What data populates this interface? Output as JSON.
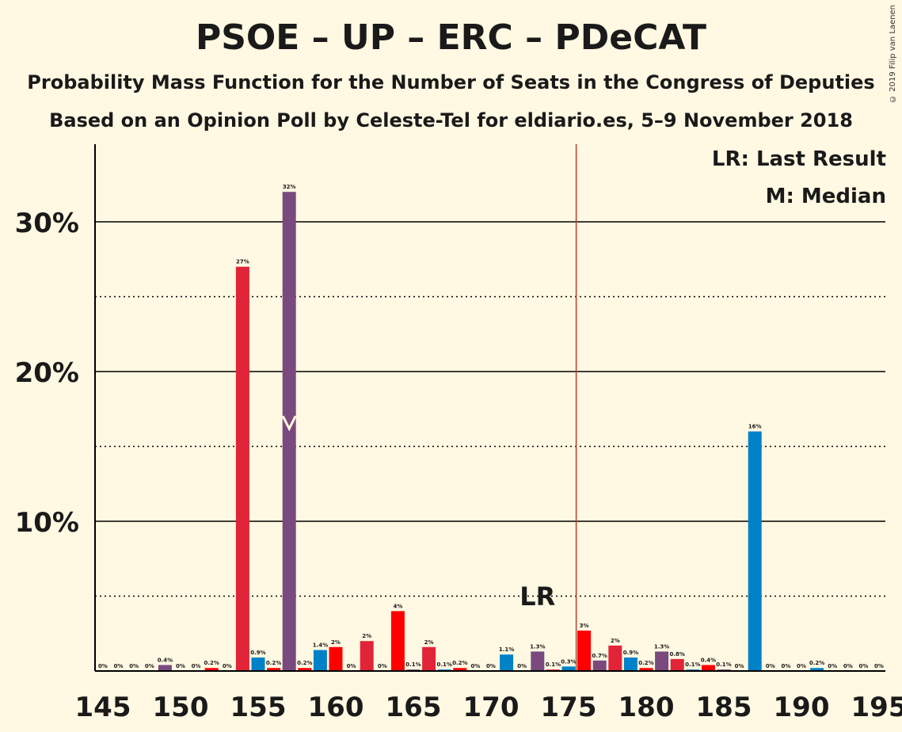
{
  "title": "PSOE – UP – ERC – PDeCAT",
  "subtitle1": "Probability Mass Function for the Number of Seats in the Congress of Deputies",
  "subtitle2": "Based on an Opinion Poll by Celeste-Tel for eldiario.es, 5–9 November 2018",
  "copyright": "© 2019 Filip van Laenen",
  "legend": {
    "lr": "LR: Last Result",
    "median": "M: Median"
  },
  "colors": {
    "background": "#FFF8E2",
    "PSOE": "#E12437",
    "UP": "#7A4A7E",
    "ERC": "#FF0000",
    "PDeCAT": "#0081C8",
    "majority_line": "#C0392B"
  },
  "chart_data": {
    "type": "bar",
    "xlabel": "",
    "ylabel": "",
    "xlim": [
      145,
      195
    ],
    "ylim": [
      0,
      35
    ],
    "x_ticks": [
      "145",
      "150",
      "155",
      "160",
      "165",
      "170",
      "175",
      "180",
      "185",
      "190",
      "195"
    ],
    "y_ticks": [
      "10%",
      "20%",
      "30%"
    ],
    "grid": "solid lines at 10% steps, dotted lines at 5% steps",
    "last_result_seat": 173,
    "last_result_label": "LR",
    "median_seat": 157,
    "majority_seat": 176,
    "bars": [
      {
        "seat": 145,
        "value": 0,
        "label": "0%",
        "color": "PSOE"
      },
      {
        "seat": 146,
        "value": 0,
        "label": "0%",
        "color": "UP"
      },
      {
        "seat": 147,
        "value": 0,
        "label": "0%",
        "color": "ERC"
      },
      {
        "seat": 148,
        "value": 0,
        "label": "0%",
        "color": "PDeCAT"
      },
      {
        "seat": 149,
        "value": 0.4,
        "label": "0.4%",
        "color": "UP"
      },
      {
        "seat": 150,
        "value": 0,
        "label": "0%",
        "color": "PSOE"
      },
      {
        "seat": 151,
        "value": 0,
        "label": "0%",
        "color": "UP"
      },
      {
        "seat": 152,
        "value": 0.2,
        "label": "0.2%",
        "color": "ERC"
      },
      {
        "seat": 153,
        "value": 0,
        "label": "0%",
        "color": "PDeCAT"
      },
      {
        "seat": 154,
        "value": 27,
        "label": "27%",
        "color": "PSOE"
      },
      {
        "seat": 155,
        "value": 0.9,
        "label": "0.9%",
        "color": "PDeCAT"
      },
      {
        "seat": 156,
        "value": 0.2,
        "label": "0.2%",
        "color": "ERC"
      },
      {
        "seat": 157,
        "value": 32,
        "label": "32%",
        "color": "UP"
      },
      {
        "seat": 158,
        "value": 0.2,
        "label": "0.2%",
        "color": "ERC"
      },
      {
        "seat": 159,
        "value": 1.4,
        "label": "1.4%",
        "color": "PDeCAT"
      },
      {
        "seat": 160,
        "value": 1.6,
        "label": "2%",
        "color": "ERC"
      },
      {
        "seat": 161,
        "value": 0,
        "label": "0%",
        "color": "UP"
      },
      {
        "seat": 162,
        "value": 2.0,
        "label": "2%",
        "color": "PSOE"
      },
      {
        "seat": 163,
        "value": 0,
        "label": "0%",
        "color": "PDeCAT"
      },
      {
        "seat": 164,
        "value": 4.0,
        "label": "4%",
        "color": "ERC"
      },
      {
        "seat": 165,
        "value": 0.1,
        "label": "0.1%",
        "color": "UP"
      },
      {
        "seat": 166,
        "value": 1.6,
        "label": "2%",
        "color": "PSOE"
      },
      {
        "seat": 167,
        "value": 0.1,
        "label": "0.1%",
        "color": "PDeCAT"
      },
      {
        "seat": 168,
        "value": 0.2,
        "label": "0.2%",
        "color": "ERC"
      },
      {
        "seat": 169,
        "value": 0,
        "label": "0%",
        "color": "UP"
      },
      {
        "seat": 170,
        "value": 0,
        "label": "0%",
        "color": "PSOE"
      },
      {
        "seat": 171,
        "value": 1.1,
        "label": "1.1%",
        "color": "PDeCAT"
      },
      {
        "seat": 172,
        "value": 0,
        "label": "0%",
        "color": "ERC"
      },
      {
        "seat": 173,
        "value": 1.3,
        "label": "1.3%",
        "color": "UP"
      },
      {
        "seat": 174,
        "value": 0.1,
        "label": "0.1%",
        "color": "PSOE"
      },
      {
        "seat": 175,
        "value": 0.3,
        "label": "0.3%",
        "color": "PDeCAT"
      },
      {
        "seat": 176,
        "value": 2.7,
        "label": "3%",
        "color": "ERC"
      },
      {
        "seat": 177,
        "value": 0.7,
        "label": "0.7%",
        "color": "UP"
      },
      {
        "seat": 178,
        "value": 1.7,
        "label": "2%",
        "color": "PSOE"
      },
      {
        "seat": 179,
        "value": 0.9,
        "label": "0.9%",
        "color": "PDeCAT"
      },
      {
        "seat": 180,
        "value": 0.2,
        "label": "0.2%",
        "color": "ERC"
      },
      {
        "seat": 181,
        "value": 1.3,
        "label": "1.3%",
        "color": "UP"
      },
      {
        "seat": 182,
        "value": 0.8,
        "label": "0.8%",
        "color": "PSOE"
      },
      {
        "seat": 183,
        "value": 0.1,
        "label": "0.1%",
        "color": "PDeCAT"
      },
      {
        "seat": 184,
        "value": 0.4,
        "label": "0.4%",
        "color": "ERC"
      },
      {
        "seat": 185,
        "value": 0.1,
        "label": "0.1%",
        "color": "UP"
      },
      {
        "seat": 186,
        "value": 0,
        "label": "0%",
        "color": "PSOE"
      },
      {
        "seat": 187,
        "value": 16,
        "label": "16%",
        "color": "PDeCAT"
      },
      {
        "seat": 188,
        "value": 0,
        "label": "0%",
        "color": "ERC"
      },
      {
        "seat": 189,
        "value": 0,
        "label": "0%",
        "color": "UP"
      },
      {
        "seat": 190,
        "value": 0,
        "label": "0%",
        "color": "PSOE"
      },
      {
        "seat": 191,
        "value": 0.2,
        "label": "0.2%",
        "color": "PDeCAT"
      },
      {
        "seat": 192,
        "value": 0,
        "label": "0%",
        "color": "ERC"
      },
      {
        "seat": 193,
        "value": 0,
        "label": "0%",
        "color": "UP"
      },
      {
        "seat": 194,
        "value": 0,
        "label": "0%",
        "color": "PSOE"
      },
      {
        "seat": 195,
        "value": 0,
        "label": "0%",
        "color": "PDeCAT"
      }
    ]
  }
}
